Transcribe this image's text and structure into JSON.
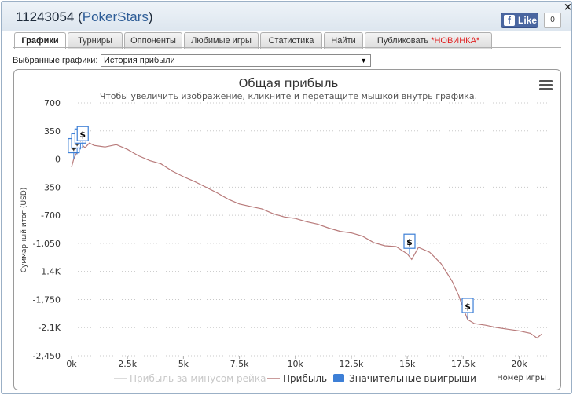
{
  "window": {
    "player_id": "11243054",
    "site_name": "PokerStars",
    "like_label": "Like",
    "like_icon": "f",
    "like_count": "0",
    "close_label": "×"
  },
  "tabs": [
    {
      "label": "Графики",
      "active": true
    },
    {
      "label": "Турниры"
    },
    {
      "label": "Оппоненты"
    },
    {
      "label": "Любимые игры"
    },
    {
      "label": "Статистика"
    },
    {
      "label": "Найти"
    },
    {
      "label": "Публиковать ",
      "badge": "*НОВИНКА*"
    }
  ],
  "selector": {
    "label": "Выбранные графики:",
    "value": "История прибыли"
  },
  "colors": {
    "profit_line": "#b87a7a",
    "rake_line": "#cfcfcf",
    "big_wins": "#3d7fd6",
    "grid": "#c8c8c8"
  },
  "chart_data": {
    "type": "line",
    "title": "Общая прибыль",
    "subtitle": "Чтобы увеличить изображение, кликните и перетащите мышкой внутрь графика.",
    "xlabel": "Номер игры",
    "ylabel": "Суммарный итог (USD)",
    "xlim": [
      0,
      21000
    ],
    "ylim": [
      -2450,
      700
    ],
    "y_ticks": [
      700,
      350,
      0,
      -350,
      -700,
      -1050,
      -1400,
      -1750,
      -2100,
      -2450
    ],
    "y_tick_labels": [
      "700",
      "350",
      "0",
      "-350",
      "-700",
      "-1,050",
      "-1.4K",
      "-1,750",
      "-2.1K",
      "-2,450"
    ],
    "x_ticks": [
      0,
      2500,
      5000,
      7500,
      10000,
      12500,
      15000,
      17500,
      20000
    ],
    "x_tick_labels": [
      "0k",
      "2.5k",
      "5k",
      "7.5k",
      "10k",
      "12.5k",
      "15k",
      "17.5k",
      "20k"
    ],
    "grid": "horizontal dotted",
    "legend_position": "bottom-center",
    "legend": [
      {
        "name": "Прибыль за минусом рейка",
        "style": "line",
        "enabled": false
      },
      {
        "name": "Прибыль",
        "style": "line",
        "enabled": true
      },
      {
        "name": "Значительные выигрыши",
        "style": "flag",
        "enabled": true
      }
    ],
    "series": [
      {
        "name": "Прибыль",
        "x": [
          0,
          100,
          200,
          300,
          400,
          500,
          600,
          800,
          1000,
          1500,
          2000,
          2500,
          3000,
          3500,
          4000,
          4500,
          5000,
          5500,
          6000,
          6500,
          7000,
          7500,
          8000,
          8500,
          9000,
          9500,
          10000,
          10500,
          11000,
          11500,
          12000,
          12500,
          13000,
          13500,
          14000,
          14500,
          15000,
          15200,
          15500,
          16000,
          16500,
          17000,
          17300,
          17500,
          17700,
          18000,
          18500,
          19000,
          19500,
          20000,
          20500,
          20800,
          21000
        ],
        "y": [
          -100,
          0,
          60,
          110,
          150,
          170,
          140,
          200,
          170,
          150,
          180,
          120,
          40,
          -20,
          -60,
          -150,
          -220,
          -280,
          -350,
          -420,
          -500,
          -560,
          -590,
          -620,
          -680,
          -720,
          -740,
          -780,
          -810,
          -860,
          -900,
          -920,
          -960,
          -1040,
          -1080,
          -1090,
          -1180,
          -1250,
          -1100,
          -1160,
          -1300,
          -1520,
          -1700,
          -1860,
          -2000,
          -2050,
          -2070,
          -2100,
          -2120,
          -2140,
          -2170,
          -2230,
          -2180
        ]
      }
    ],
    "flags": [
      {
        "x": 100,
        "y": 0,
        "label": "$"
      },
      {
        "x": 250,
        "y": 60,
        "label": "$"
      },
      {
        "x": 400,
        "y": 120,
        "label": "$"
      },
      {
        "x": 500,
        "y": 150,
        "label": "$"
      },
      {
        "x": 15100,
        "y": -1190,
        "label": "$"
      },
      {
        "x": 17700,
        "y": -1990,
        "label": "$"
      }
    ]
  }
}
